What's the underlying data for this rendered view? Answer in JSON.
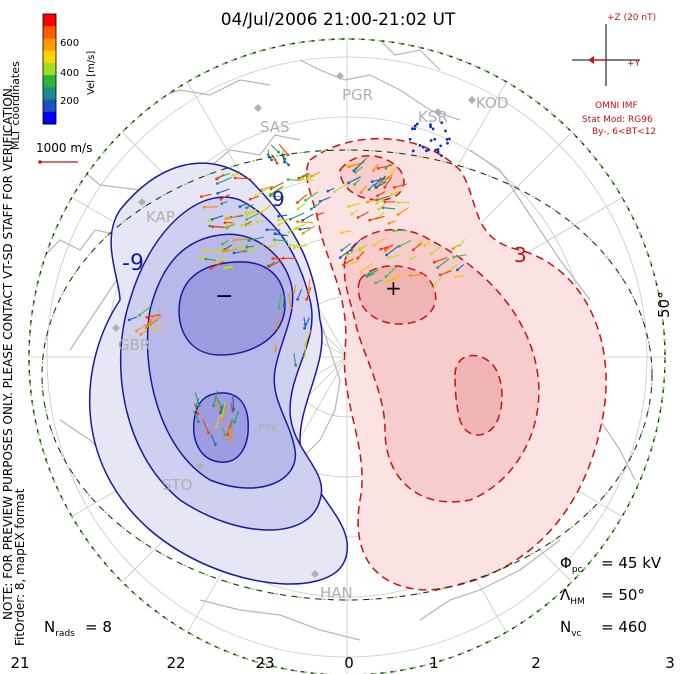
{
  "title": "04/Jul/2006 21:00-21:02 UT",
  "legend": {
    "unit_label": "Vel [m/s]",
    "ticks": [
      "600",
      "400",
      "200"
    ],
    "colors": [
      "#ff0000",
      "#ff5a00",
      "#ff9a00",
      "#ffd200",
      "#9fe01e",
      "#2fb33a",
      "#1f8a8a",
      "#2050c0",
      "#0000ff"
    ]
  },
  "coord_label": "MLT coordinates",
  "vector_scale_label": "1000 m/s",
  "imf": {
    "z_label": "+Z (20 nT)",
    "y_label": "+Y",
    "source": "OMNI IMF",
    "model_lines": [
      "Stat Mod: RG96",
      "By-, 6<BT<12"
    ]
  },
  "stations": [
    {
      "name": "PGR"
    },
    {
      "name": "KSR"
    },
    {
      "name": "KOD"
    },
    {
      "name": "SAS"
    },
    {
      "name": "KAP"
    },
    {
      "name": "GBR"
    },
    {
      "name": "STO"
    },
    {
      "name": "PYK"
    },
    {
      "name": "HAN"
    }
  ],
  "contour_labels": {
    "neg": [
      "-9",
      "9"
    ],
    "pos": [
      "3"
    ],
    "minus_marker": "−",
    "plus_marker": "+"
  },
  "lat_label": "50°",
  "notice": {
    "line1": "NOTE: FOR PREVIEW PURPOSES ONLY. PLEASE CONTACT VT-SD STAFF FOR VERIFICATION.",
    "line2": "FitOrder: 8, mapEX format"
  },
  "stats": {
    "phi_pc": "= 45 kV",
    "lambda_hm": "= 50°",
    "n_vc": "= 460",
    "n_rads": "= 8"
  },
  "mlt_ticks": [
    "21",
    "22",
    "23",
    "0",
    "1",
    "2",
    "3"
  ],
  "colors": {
    "negative_cell": "#1a1aa0",
    "positive_cell": "#cc1111",
    "coastline": "#b5b5b5",
    "boundary_green": "#66dd33"
  }
}
